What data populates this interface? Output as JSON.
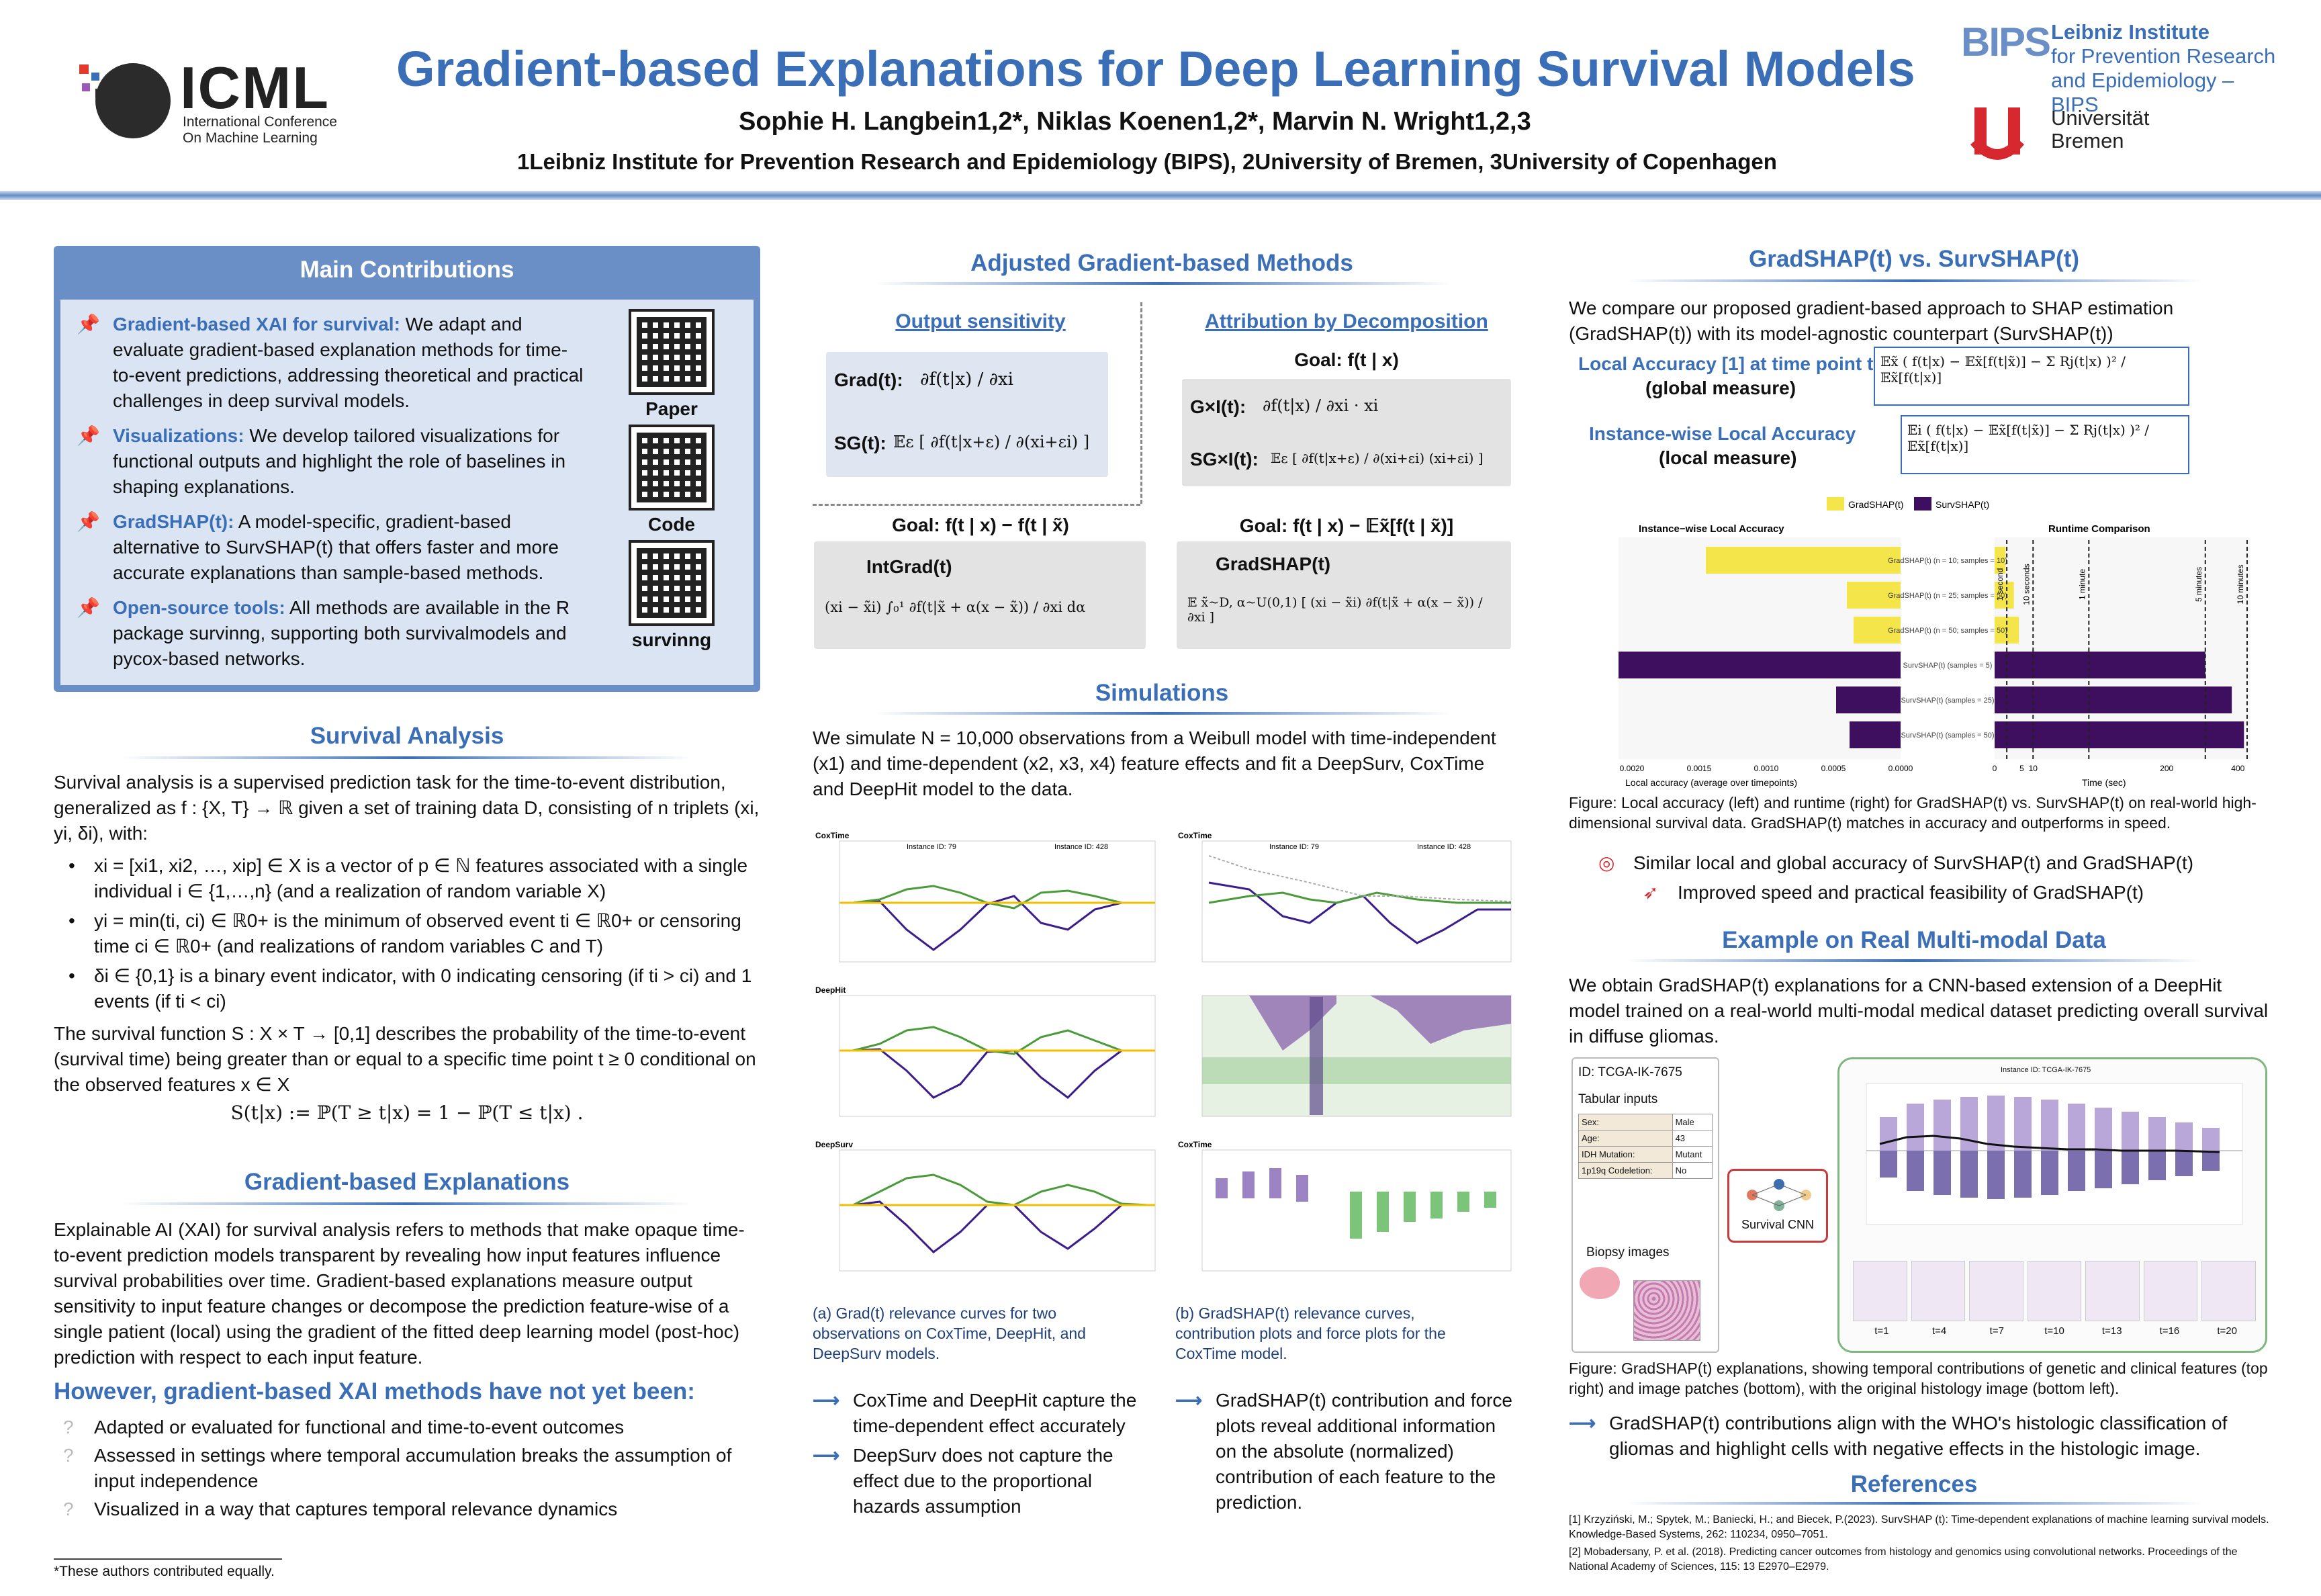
{
  "header": {
    "logo_text": "ICML",
    "logo_sub1": "International Conference",
    "logo_sub2": "On Machine Learning",
    "title": "Gradient-based Explanations for Deep Learning Survival Models",
    "authors": "Sophie H. Langbein1,2*, Niklas Koenen1,2*, Marvin N. Wright1,2,3",
    "affiliations": "1Leibniz Institute for Prevention Research and Epidemiology (BIPS), 2University of Bremen, 3University of Copenhagen",
    "bips_logo": "BIPS",
    "bips_text1": "Leibniz Institute",
    "bips_text2": "for Prevention Research",
    "bips_text3": "and Epidemiology – BIPS",
    "ub_text1": "Universität",
    "ub_text2": "Bremen"
  },
  "contributions": {
    "title": "Main Contributions",
    "items": [
      {
        "head": "Gradient-based XAI for survival:",
        "body": "We adapt and evaluate gradient-based explanation methods for time-to-event predictions, addressing theoretical and practical challenges in deep survival models."
      },
      {
        "head": "Visualizations:",
        "body": "We develop tailored visualizations for functional outputs and highlight the role of baselines in shaping explanations."
      },
      {
        "head": "GradSHAP(t):",
        "body": "A model-specific, gradient-based alternative to SurvSHAP(t) that offers faster and more accurate explanations than sample-based methods."
      },
      {
        "head": "Open-source tools:",
        "body": "All methods are available in the R package survinng, supporting both survivalmodels and pycox-based networks."
      }
    ],
    "qr_labels": [
      "Paper",
      "Code",
      "survinng"
    ]
  },
  "survival": {
    "title": "Survival Analysis",
    "p1": "Survival analysis is a supervised prediction task for the time-to-event distribution, generalized as f : {X, T} → ℝ given a set of training data D, consisting of n triplets (xi, yi, δi), with:",
    "b1": "xi = [xi1, xi2, …, xip] ∈ X is a vector of p ∈ ℕ features associated with a single individual i ∈ {1,…,n} (and a realization of random variable X)",
    "b2": "yi = min(ti, ci) ∈ ℝ0+ is the minimum of observed event ti ∈ ℝ0+ or censoring time ci ∈ ℝ0+ (and realizations of random variables C and T)",
    "b3": "δi ∈ {0,1} is a binary event indicator, with 0 indicating censoring (if ti > ci) and 1 events (if ti < ci)",
    "p2": "The survival function S : X × T → [0,1] describes the probability of the time-to-event (survival time) being greater than or equal to a specific time point t ≥ 0 conditional on the observed features x ∈ X",
    "eq": "S(t|x) := ℙ(T ≥ t|x) = 1 − ℙ(T ≤ t|x) ."
  },
  "gradient": {
    "title": "Gradient-based Explanations",
    "p1": "Explainable AI (XAI) for survival analysis refers to methods that make opaque time-to-event prediction models transparent by revealing how input features influence survival probabilities over time. Gradient-based explanations measure output sensitivity to input feature changes or decompose the prediction feature-wise of a single patient (local) using the gradient of the fitted deep learning model (post-hoc) prediction with respect to each input feature.",
    "however": "However, gradient-based XAI methods have not yet been:",
    "q1": "Adapted or evaluated for functional and time-to-event outcomes",
    "q2": "Assessed in settings where temporal accumulation breaks the assumption of input independence",
    "q3": "Visualized in a way that captures temporal relevance dynamics",
    "footnote": "*These authors contributed equally."
  },
  "adjusted": {
    "title": "Adjusted Gradient-based Methods",
    "os_title": "Output sensitivity",
    "ad_title": "Attribution by Decomposition",
    "grad": "Grad(t):",
    "grad_f": "∂f(t|x) / ∂xi",
    "sg": "SG(t):",
    "sg_f": "𝔼ε [ ∂f(t|x+ε) / ∂(xi+εi) ]",
    "goal1": "Goal: f(t | x)",
    "gxi": "G×I(t):",
    "gxi_f": "∂f(t|x) / ∂xi · xi",
    "sgxi": "SG×I(t):",
    "sgxi_f": "𝔼ε [ ∂f(t|x+ε) / ∂(xi+εi) (xi+εi) ]",
    "goal2": "Goal: f(t | x) − f(t | x̃)",
    "goal3": "Goal: f(t | x) − 𝔼x̃[f(t | x̃)]",
    "intgrad": "IntGrad(t)",
    "intgrad_f": "(xi − x̃i) ∫₀¹ ∂f(t|x̃ + α(x − x̃)) / ∂xi dα",
    "gradshap": "GradSHAP(t)",
    "gradshap_f": "𝔼 x̃~D, α~U(0,1) [ (xi − x̃i) ∂f(t|x̃ + α(x − x̃)) / ∂xi ]"
  },
  "simulations": {
    "title": "Simulations",
    "p1": "We simulate N = 10,000 observations from a Weibull model with time-independent (x1) and time-dependent (x2, x3, x4) feature effects and fit a DeepSurv, CoxTime and DeepHit model to the data.",
    "panel_a": [
      "CoxTime",
      "DeepHit",
      "DeepSurv"
    ],
    "panel_b": [
      "CoxTime",
      "",
      "CoxTime"
    ],
    "inst1": "Instance ID: 79",
    "inst2": "Instance ID: 428",
    "cap_a": "(a) Grad(t) relevance curves for two observations on CoxTime, DeepHit, and DeepSurv models.",
    "cap_b": "(b) GradSHAP(t) relevance curves, contribution plots and force plots for the CoxTime model.",
    "c1": "CoxTime and DeepHit capture the time-dependent effect accurately",
    "c2": "DeepSurv does not capture the effect due to the proportional hazards assumption",
    "c3": "GradSHAP(t) contribution and force plots reveal additional information on the absolute (normalized) contribution of each feature to the prediction."
  },
  "gvs": {
    "title": "GradSHAP(t) vs. SurvSHAP(t)",
    "p1": "We compare our proposed gradient-based approach to SHAP estimation (GradSHAP(t)) with its model-agnostic counterpart (SurvSHAP(t))",
    "la": "Local Accuracy [1] at time point t",
    "la2": "(global measure)",
    "ila": "Instance-wise Local Accuracy",
    "ila2": "(local measure)",
    "legend": [
      "GradSHAP(t)",
      "SurvSHAP(t)"
    ],
    "left_title": "Instance−wise Local Accuracy",
    "right_title": "Runtime Comparison",
    "left_xlabel": "Local accuracy (average over timepoints)",
    "right_xlabel": "Time (sec)",
    "cap": "Figure: Local accuracy (left) and runtime (right) for GradSHAP(t) vs. SurvSHAP(t) on real-world high-dimensional survival data. GradSHAP(t) matches in accuracy and outperforms in speed.",
    "r1": "Similar local and global accuracy of SurvSHAP(t) and GradSHAP(t)",
    "r2": "Improved speed and practical feasibility of GradSHAP(t)"
  },
  "chart_data": [
    {
      "type": "bar",
      "title": "Instance−wise Local Accuracy",
      "xlabel": "Local accuracy (average over timepoints)",
      "categories": [
        "GradSHAP(t) (n = 10; samples = 10)",
        "GradSHAP(t) (n = 25; samples = 50)",
        "GradSHAP(t) (n = 50; samples = 50)",
        "SurvSHAP(t) (samples = 5)",
        "SurvSHAP(t) (samples = 25)",
        "SurvSHAP(t) (samples = 50)"
      ],
      "values": [
        0.00145,
        0.0004,
        0.00035,
        0.0021,
        0.00048,
        0.00038
      ],
      "xticks": [
        "0.0020",
        "0.0015",
        "0.0010",
        "0.0005",
        "0.0000"
      ],
      "xlim": [
        0.0021,
        0
      ]
    },
    {
      "type": "bar",
      "title": "Runtime Comparison",
      "xlabel": "Time (sec)",
      "categories": [
        "GradSHAP(t) (n = 10; samples = 10)",
        "GradSHAP(t) (n = 25; samples = 50)",
        "GradSHAP(t) (n = 50; samples = 50)",
        "SurvSHAP(t) (samples = 5)",
        "SurvSHAP(t) (samples = 25)",
        "SurvSHAP(t) (samples = 50)"
      ],
      "values": [
        0.8,
        2.5,
        4.0,
        300,
        380,
        420
      ],
      "xticks": [
        "0",
        "5",
        "10",
        "200",
        "400"
      ],
      "refs": [
        "1 second",
        "10 seconds",
        "1 minute",
        "5 minutes",
        "10 minutes"
      ]
    }
  ],
  "multimodal": {
    "title": "Example on Real Multi-modal Data",
    "p1": "We obtain GradSHAP(t) explanations for a CNN-based extension of a DeepHit model trained on a real-world multi-modal medical dataset predicting overall survival in diffuse gliomas.",
    "id": "ID: TCGA-IK-7675",
    "tab": "Tabular inputs",
    "rows": [
      [
        "Sex:",
        "Male"
      ],
      [
        "Age:",
        "43"
      ],
      [
        "IDH Mutation:",
        "Mutant"
      ],
      [
        "1p19q Codeletion:",
        "No"
      ]
    ],
    "biopsy": "Biopsy images",
    "cnn": "Survival CNN",
    "inst": "Instance ID: TCGA-IK-7675",
    "times": [
      "t=1",
      "t=4",
      "t=7",
      "t=10",
      "t=13",
      "t=16",
      "t=20"
    ],
    "cap": "Figure: GradSHAP(t) explanations, showing temporal contributions of genetic and clinical features (top right) and image patches (bottom), with the original histology image (bottom left).",
    "concl": "GradSHAP(t) contributions align with the WHO's histologic classification of gliomas and highlight cells with negative effects in the histologic image."
  },
  "refs": {
    "title": "References",
    "r1": "[1] Krzyziński, M.; Spytek, M.; Baniecki, H.; and Biecek, P.(2023). SurvSHAP (t): Time-dependent explanations of machine learning survival models. Knowledge-Based Systems, 262: 110234, 0950–7051.",
    "r2": "[2] Mobadersany, P. et al. (2018). Predicting cancer outcomes from histology and genomics using convolutional networks. Proceedings of the National Academy of Sciences, 115: 13 E2970–E2979."
  },
  "colors": {
    "accent": "#3a6fb7",
    "grad": "#f4e64a",
    "surv": "#3d0f5e",
    "box": "#6a8fc7"
  }
}
